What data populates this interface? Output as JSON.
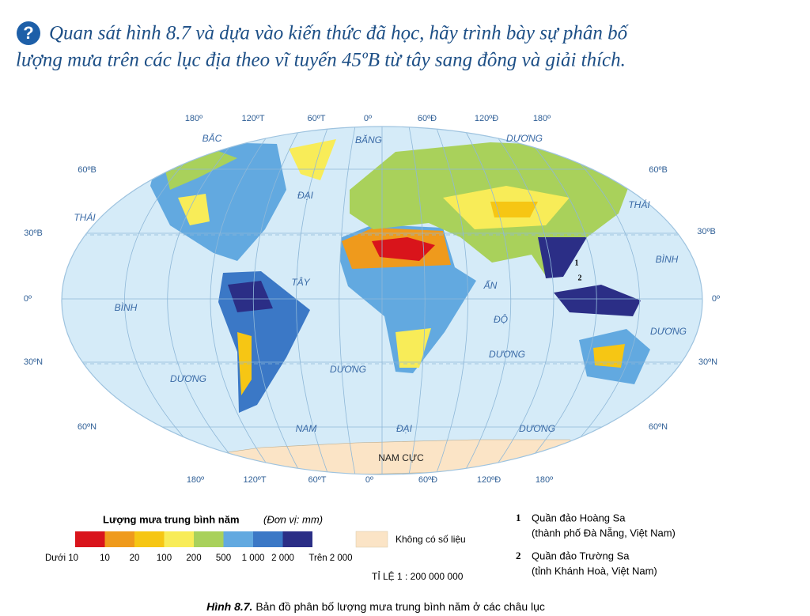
{
  "question": {
    "icon": "?",
    "lines": [
      "Quan sát hình 8.7 và dựa vào kiến thức đã học, hãy trình bày sự phân bố",
      "lượng mưa trên các lục địa theo vĩ tuyến 45ºB từ tây sang đông và giải thích."
    ]
  },
  "map": {
    "top_longitudes": [
      "180º",
      "120ºT",
      "60ºT",
      "0º",
      "60ºĐ",
      "120ºĐ",
      "180º"
    ],
    "bottom_longitudes": [
      "180º",
      "120ºT",
      "60ºT",
      "0º",
      "60ºĐ",
      "120ºĐ",
      "180º"
    ],
    "left_latitudes": [
      "60ºB",
      "30ºB",
      "0º",
      "30ºN",
      "60ºN"
    ],
    "right_latitudes": [
      "60ºB",
      "30ºB",
      "0º",
      "30ºN",
      "60ºN"
    ],
    "ocean_labels": [
      "BẮC",
      "BĂNG",
      "DƯƠNG",
      "ĐẠI",
      "TÂY",
      "DƯƠNG",
      "THÁI",
      "BÌNH",
      "DƯƠNG",
      "THÁI",
      "BÌNH",
      "DƯƠNG",
      "ẤN",
      "ĐỘ",
      "DƯƠNG",
      "NAM",
      "ĐẠI",
      "DƯƠNG"
    ],
    "antarctica": "NAM CỰC",
    "island_markers": [
      "1",
      "2"
    ]
  },
  "legend": {
    "title": "Lượng mưa trung bình năm",
    "unit": "(Đơn vị: mm)",
    "colors": [
      "#d9141b",
      "#ef9a1c",
      "#f6c614",
      "#f8ec58",
      "#a9d15b",
      "#62a9e0",
      "#3b78c6",
      "#2b2e86"
    ],
    "labels": [
      "Dưới 10",
      "10",
      "20",
      "100",
      "200",
      "500",
      "1 000",
      "2 000",
      "Trên 2 000"
    ],
    "no_data_color": "#fbe4c6",
    "no_data": "Không có số liệu",
    "scale": "TỈ LỆ 1 : 200 000 000"
  },
  "notes": [
    {
      "number": "1",
      "lines": [
        "Quần đảo Hoàng Sa",
        "(thành phố Đà Nẵng, Việt Nam)"
      ]
    },
    {
      "number": "2",
      "lines": [
        "Quần đảo Trường Sa",
        "(tỉnh Khánh Hoà, Việt Nam)"
      ]
    }
  ],
  "caption": {
    "label": "Hình 8.7.",
    "text": " Bản đồ phân bố lượng mưa trung bình năm ở các châu lục"
  }
}
